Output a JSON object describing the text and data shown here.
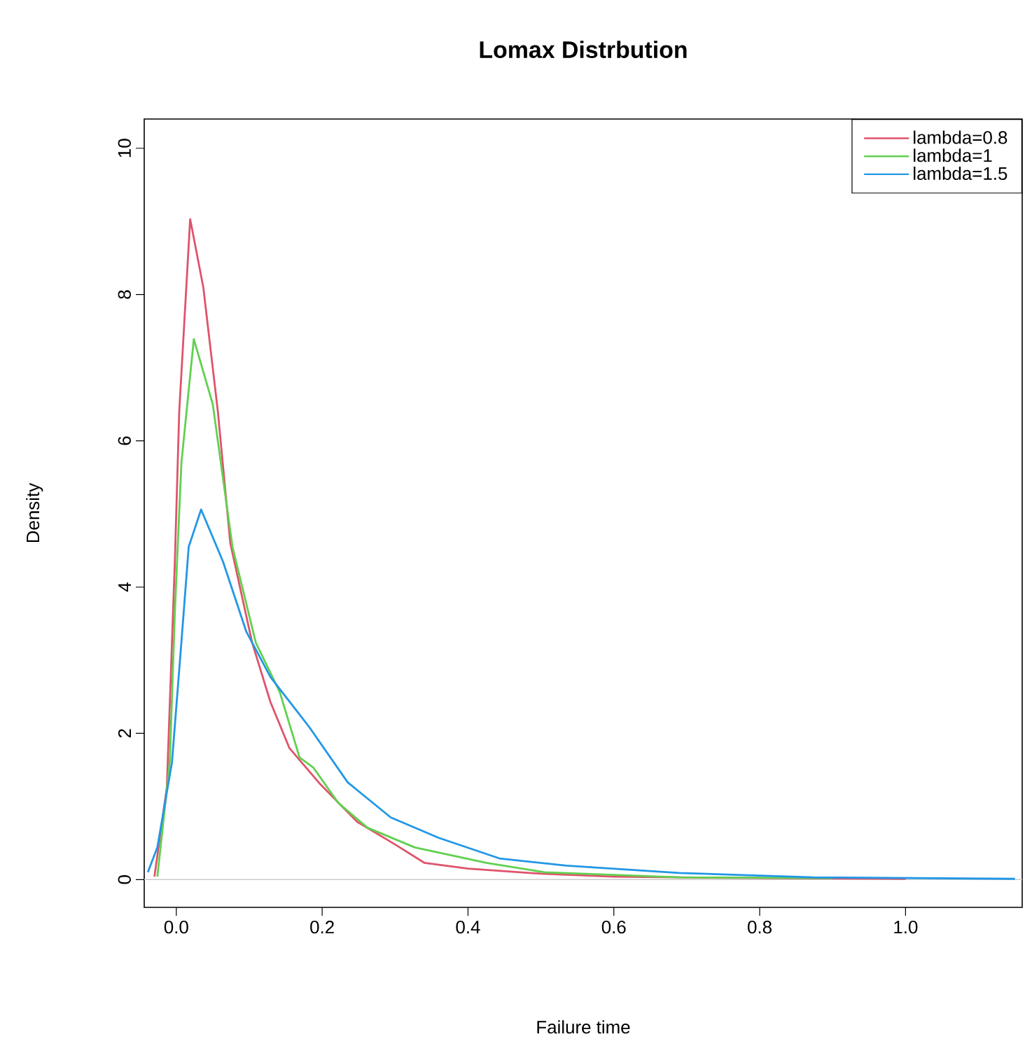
{
  "chart_data": {
    "type": "line",
    "title": "Lomax Distrbution",
    "xlabel": "Failure time",
    "ylabel": "Density",
    "xlim": [
      -0.044,
      1.16
    ],
    "ylim": [
      -0.38,
      10.4
    ],
    "xticks": [
      {
        "value": 0,
        "label": "0.0"
      },
      {
        "value": 0.2,
        "label": "0.2"
      },
      {
        "value": 0.4,
        "label": "0.4"
      },
      {
        "value": 0.6,
        "label": "0.6"
      },
      {
        "value": 0.8,
        "label": "0.8"
      },
      {
        "value": 1.0,
        "label": "1.0"
      }
    ],
    "yticks": [
      0,
      2,
      4,
      6,
      8,
      10
    ],
    "grid": false,
    "legend": "top right",
    "marker": "none",
    "line_style": "solid",
    "ref_lines": [
      {
        "axis": "y",
        "value": 0,
        "color": "#cccccc"
      }
    ],
    "series": [
      {
        "name": "lambda=0.8",
        "color": "#df536b",
        "x": [
          -0.03,
          -0.013,
          -0.002,
          0.004,
          0.019,
          0.037,
          0.057,
          0.074,
          0.104,
          0.129,
          0.155,
          0.196,
          0.248,
          0.3,
          0.34,
          0.4,
          0.5,
          0.6,
          0.8,
          1.0
        ],
        "values": [
          0.04,
          1.26,
          4.35,
          6.4,
          9.03,
          8.1,
          6.4,
          4.6,
          3.24,
          2.43,
          1.8,
          1.32,
          0.79,
          0.48,
          0.23,
          0.15,
          0.08,
          0.04,
          0.02,
          0.01
        ]
      },
      {
        "name": "lambda=1",
        "color": "#61d04f",
        "x": [
          -0.026,
          -0.009,
          -0.002,
          0.007,
          0.024,
          0.05,
          0.077,
          0.109,
          0.142,
          0.169,
          0.188,
          0.222,
          0.262,
          0.327,
          0.425,
          0.505,
          0.69,
          0.9
        ],
        "values": [
          0.04,
          1.6,
          3.66,
          5.7,
          7.39,
          6.5,
          4.55,
          3.24,
          2.56,
          1.67,
          1.53,
          1.05,
          0.71,
          0.44,
          0.23,
          0.1,
          0.03,
          0.02
        ]
      },
      {
        "name": "lambda=1.5",
        "color": "#2297e6",
        "x": [
          -0.039,
          -0.026,
          -0.006,
          0.007,
          0.017,
          0.034,
          0.064,
          0.096,
          0.129,
          0.182,
          0.235,
          0.294,
          0.36,
          0.443,
          0.535,
          0.69,
          0.874,
          1.15
        ],
        "values": [
          0.1,
          0.44,
          1.6,
          3.25,
          4.55,
          5.06,
          4.35,
          3.39,
          2.77,
          2.09,
          1.33,
          0.85,
          0.57,
          0.29,
          0.19,
          0.09,
          0.03,
          0.01
        ]
      }
    ]
  }
}
